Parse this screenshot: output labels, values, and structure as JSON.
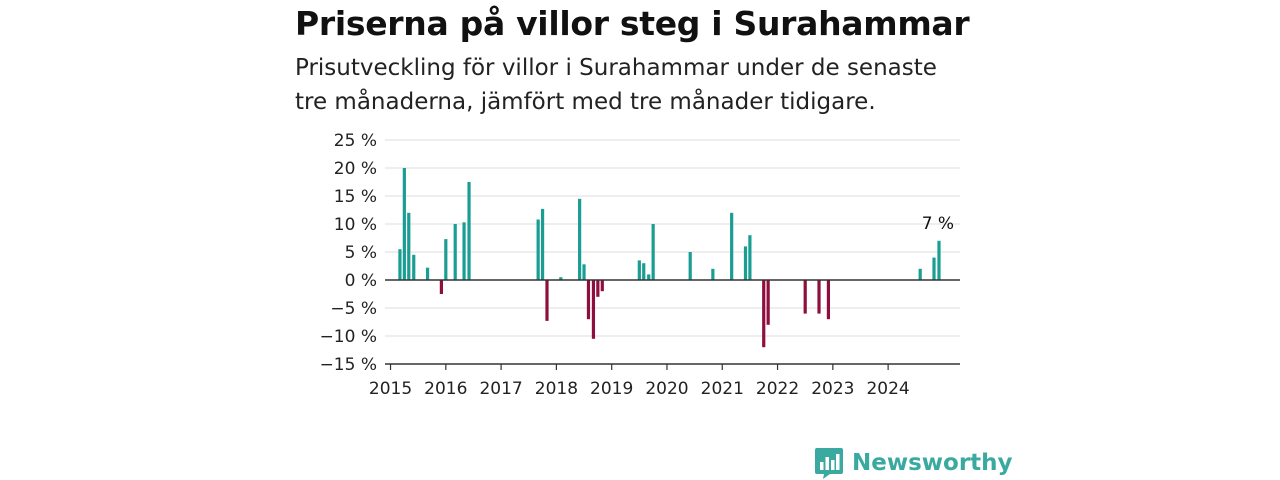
{
  "header": {
    "title": "Priserna på villor steg i Surahammar",
    "subtitle": "Prisutveckling för villor i Surahammar under de senaste tre månaderna, jämfört med tre månader tidigare."
  },
  "brand": {
    "name": "Newsworthy",
    "icon": "newsworthy-logo-icon",
    "color": "#3aa99f"
  },
  "colors": {
    "positive": "#1a9e94",
    "negative": "#8e0f3d",
    "grid": "#dddddd",
    "axis": "#333333"
  },
  "chart_data": {
    "type": "bar",
    "title": "Priserna på villor steg i Surahammar",
    "xlabel": "",
    "ylabel": "",
    "ylim": [
      -15,
      25
    ],
    "yticks": [
      25,
      20,
      15,
      10,
      5,
      0,
      -5,
      -10,
      -15
    ],
    "ytick_labels": [
      "25 %",
      "20 %",
      "15 %",
      "10 %",
      "5 %",
      "0 %",
      "−5 %",
      "−10 %",
      "−15 %"
    ],
    "xlim": [
      2014.9,
      2025.3
    ],
    "xticks": [
      2015,
      2016,
      2017,
      2018,
      2019,
      2020,
      2021,
      2022,
      2023,
      2024
    ],
    "xtick_labels": [
      "2015",
      "2016",
      "2017",
      "2018",
      "2019",
      "2020",
      "2021",
      "2022",
      "2023",
      "2024"
    ],
    "grid": true,
    "annotation": {
      "text": "7 %",
      "x": 2024.9,
      "y": 7
    },
    "points": [
      {
        "x": 2015.17,
        "y": 5.5
      },
      {
        "x": 2015.25,
        "y": 20
      },
      {
        "x": 2015.33,
        "y": 12
      },
      {
        "x": 2015.42,
        "y": 4.5
      },
      {
        "x": 2015.67,
        "y": 2.2
      },
      {
        "x": 2015.92,
        "y": -2.5
      },
      {
        "x": 2016.0,
        "y": 7.3
      },
      {
        "x": 2016.17,
        "y": 10
      },
      {
        "x": 2016.33,
        "y": 10.3
      },
      {
        "x": 2016.42,
        "y": 17.5
      },
      {
        "x": 2017.67,
        "y": 10.8
      },
      {
        "x": 2017.75,
        "y": 12.7
      },
      {
        "x": 2017.83,
        "y": -7.3
      },
      {
        "x": 2018.08,
        "y": 0.5
      },
      {
        "x": 2018.42,
        "y": 14.5
      },
      {
        "x": 2018.5,
        "y": 2.8
      },
      {
        "x": 2018.58,
        "y": -7
      },
      {
        "x": 2018.67,
        "y": -10.5
      },
      {
        "x": 2018.75,
        "y": -3
      },
      {
        "x": 2018.83,
        "y": -2
      },
      {
        "x": 2019.5,
        "y": 3.5
      },
      {
        "x": 2019.58,
        "y": 3
      },
      {
        "x": 2019.67,
        "y": 1
      },
      {
        "x": 2019.75,
        "y": 10
      },
      {
        "x": 2020.42,
        "y": 5
      },
      {
        "x": 2020.83,
        "y": 2
      },
      {
        "x": 2021.17,
        "y": 12
      },
      {
        "x": 2021.42,
        "y": 6
      },
      {
        "x": 2021.5,
        "y": 8
      },
      {
        "x": 2021.75,
        "y": -12
      },
      {
        "x": 2021.83,
        "y": -8
      },
      {
        "x": 2022.5,
        "y": -6
      },
      {
        "x": 2022.75,
        "y": -6
      },
      {
        "x": 2022.92,
        "y": -7
      },
      {
        "x": 2024.58,
        "y": 2
      },
      {
        "x": 2024.83,
        "y": 4
      },
      {
        "x": 2024.92,
        "y": 7
      }
    ]
  }
}
